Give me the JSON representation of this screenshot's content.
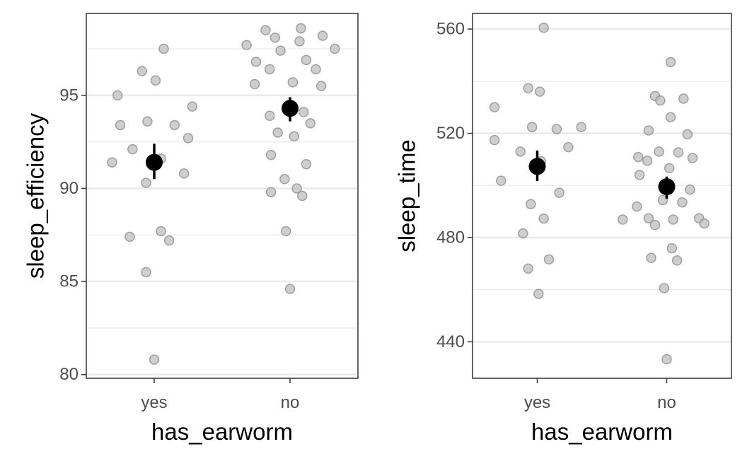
{
  "chart_data": [
    {
      "type": "scatter",
      "xlabel": "has_earworm",
      "ylabel": "sleep_efficiency",
      "categories": [
        "yes",
        "no"
      ],
      "ylim": [
        79.8,
        99.4
      ],
      "yticks": [
        80,
        85,
        90,
        95
      ],
      "grid": true,
      "colors": {
        "points": "#bdbdbd",
        "mean": "#000000"
      },
      "points": [
        {
          "x": "yes",
          "jitter": -0.31,
          "y": 91.4
        },
        {
          "x": "yes",
          "jitter": -0.27,
          "y": 95.0
        },
        {
          "x": "yes",
          "jitter": -0.25,
          "y": 93.4
        },
        {
          "x": "yes",
          "jitter": -0.16,
          "y": 92.1
        },
        {
          "x": "yes",
          "jitter": -0.09,
          "y": 96.3
        },
        {
          "x": "yes",
          "jitter": 0.01,
          "y": 95.8
        },
        {
          "x": "yes",
          "jitter": 0.07,
          "y": 97.5
        },
        {
          "x": "yes",
          "jitter": -0.05,
          "y": 93.6
        },
        {
          "x": "yes",
          "jitter": 0.15,
          "y": 93.4
        },
        {
          "x": "yes",
          "jitter": 0.25,
          "y": 92.7
        },
        {
          "x": "yes",
          "jitter": 0.28,
          "y": 94.4
        },
        {
          "x": "yes",
          "jitter": 0.22,
          "y": 90.8
        },
        {
          "x": "yes",
          "jitter": 0.05,
          "y": 91.6
        },
        {
          "x": "yes",
          "jitter": -0.06,
          "y": 90.3
        },
        {
          "x": "yes",
          "jitter": -0.18,
          "y": 87.4
        },
        {
          "x": "yes",
          "jitter": 0.05,
          "y": 87.7
        },
        {
          "x": "yes",
          "jitter": 0.11,
          "y": 87.2
        },
        {
          "x": "yes",
          "jitter": -0.06,
          "y": 85.5
        },
        {
          "x": "yes",
          "jitter": 0.0,
          "y": 80.8
        },
        {
          "x": "no",
          "jitter": -0.32,
          "y": 97.7
        },
        {
          "x": "no",
          "jitter": -0.18,
          "y": 98.5
        },
        {
          "x": "no",
          "jitter": -0.11,
          "y": 98.1
        },
        {
          "x": "no",
          "jitter": -0.25,
          "y": 96.8
        },
        {
          "x": "no",
          "jitter": -0.15,
          "y": 96.4
        },
        {
          "x": "no",
          "jitter": -0.07,
          "y": 97.4
        },
        {
          "x": "no",
          "jitter": -0.26,
          "y": 95.6
        },
        {
          "x": "no",
          "jitter": 0.08,
          "y": 98.6
        },
        {
          "x": "no",
          "jitter": 0.24,
          "y": 98.2
        },
        {
          "x": "no",
          "jitter": 0.33,
          "y": 97.5
        },
        {
          "x": "no",
          "jitter": 0.07,
          "y": 97.9
        },
        {
          "x": "no",
          "jitter": 0.12,
          "y": 96.9
        },
        {
          "x": "no",
          "jitter": 0.19,
          "y": 96.4
        },
        {
          "x": "no",
          "jitter": 0.02,
          "y": 95.7
        },
        {
          "x": "no",
          "jitter": 0.23,
          "y": 95.5
        },
        {
          "x": "no",
          "jitter": -0.15,
          "y": 93.9
        },
        {
          "x": "no",
          "jitter": 0.1,
          "y": 94.1
        },
        {
          "x": "no",
          "jitter": 0.15,
          "y": 93.5
        },
        {
          "x": "no",
          "jitter": -0.09,
          "y": 93.0
        },
        {
          "x": "no",
          "jitter": 0.03,
          "y": 92.8
        },
        {
          "x": "no",
          "jitter": -0.14,
          "y": 91.8
        },
        {
          "x": "no",
          "jitter": 0.12,
          "y": 91.3
        },
        {
          "x": "no",
          "jitter": -0.04,
          "y": 90.5
        },
        {
          "x": "no",
          "jitter": 0.05,
          "y": 90.0
        },
        {
          "x": "no",
          "jitter": -0.14,
          "y": 89.8
        },
        {
          "x": "no",
          "jitter": 0.09,
          "y": 89.6
        },
        {
          "x": "no",
          "jitter": -0.03,
          "y": 87.7
        },
        {
          "x": "no",
          "jitter": 0.0,
          "y": 84.6
        }
      ],
      "summary": [
        {
          "x": "yes",
          "mean": 91.4,
          "lower": 90.5,
          "upper": 92.4
        },
        {
          "x": "no",
          "mean": 94.3,
          "lower": 93.6,
          "upper": 94.9
        }
      ]
    },
    {
      "type": "scatter",
      "xlabel": "has_earworm",
      "ylabel": "sleep_time",
      "categories": [
        "yes",
        "no"
      ],
      "ylim": [
        426,
        566
      ],
      "yticks": [
        440,
        480,
        520,
        560
      ],
      "grid": true,
      "colors": {
        "points": "#bdbdbd",
        "mean": "#000000"
      },
      "points": [
        {
          "x": "yes",
          "jitter": 0.05,
          "y": 560.5
        },
        {
          "x": "yes",
          "jitter": -0.07,
          "y": 537.3
        },
        {
          "x": "yes",
          "jitter": 0.02,
          "y": 536.0
        },
        {
          "x": "yes",
          "jitter": -0.33,
          "y": 530.0
        },
        {
          "x": "yes",
          "jitter": -0.04,
          "y": 522.4
        },
        {
          "x": "yes",
          "jitter": 0.34,
          "y": 522.4
        },
        {
          "x": "yes",
          "jitter": 0.15,
          "y": 521.6
        },
        {
          "x": "yes",
          "jitter": -0.33,
          "y": 517.4
        },
        {
          "x": "yes",
          "jitter": 0.24,
          "y": 514.7
        },
        {
          "x": "yes",
          "jitter": -0.13,
          "y": 513.0
        },
        {
          "x": "yes",
          "jitter": 0.03,
          "y": 509.3
        },
        {
          "x": "yes",
          "jitter": -0.28,
          "y": 501.8
        },
        {
          "x": "yes",
          "jitter": 0.17,
          "y": 497.2
        },
        {
          "x": "yes",
          "jitter": -0.05,
          "y": 492.8
        },
        {
          "x": "yes",
          "jitter": 0.05,
          "y": 487.3
        },
        {
          "x": "yes",
          "jitter": -0.11,
          "y": 481.6
        },
        {
          "x": "yes",
          "jitter": -0.07,
          "y": 468.1
        },
        {
          "x": "yes",
          "jitter": 0.09,
          "y": 471.6
        },
        {
          "x": "yes",
          "jitter": 0.01,
          "y": 458.4
        },
        {
          "x": "no",
          "jitter": 0.03,
          "y": 547.3
        },
        {
          "x": "no",
          "jitter": -0.09,
          "y": 534.3
        },
        {
          "x": "no",
          "jitter": -0.05,
          "y": 532.6
        },
        {
          "x": "no",
          "jitter": 0.13,
          "y": 533.3
        },
        {
          "x": "no",
          "jitter": 0.03,
          "y": 526.2
        },
        {
          "x": "no",
          "jitter": -0.14,
          "y": 521.1
        },
        {
          "x": "no",
          "jitter": 0.16,
          "y": 519.6
        },
        {
          "x": "no",
          "jitter": -0.22,
          "y": 510.9
        },
        {
          "x": "no",
          "jitter": -0.15,
          "y": 509.5
        },
        {
          "x": "no",
          "jitter": -0.06,
          "y": 513.0
        },
        {
          "x": "no",
          "jitter": 0.09,
          "y": 512.7
        },
        {
          "x": "no",
          "jitter": 0.2,
          "y": 510.5
        },
        {
          "x": "no",
          "jitter": 0.02,
          "y": 506.6
        },
        {
          "x": "no",
          "jitter": -0.21,
          "y": 504.0
        },
        {
          "x": "no",
          "jitter": 0.18,
          "y": 498.4
        },
        {
          "x": "no",
          "jitter": -0.23,
          "y": 491.9
        },
        {
          "x": "no",
          "jitter": -0.03,
          "y": 494.4
        },
        {
          "x": "no",
          "jitter": 0.12,
          "y": 493.5
        },
        {
          "x": "no",
          "jitter": -0.34,
          "y": 486.9
        },
        {
          "x": "no",
          "jitter": -0.14,
          "y": 487.4
        },
        {
          "x": "no",
          "jitter": -0.09,
          "y": 484.8
        },
        {
          "x": "no",
          "jitter": 0.05,
          "y": 486.9
        },
        {
          "x": "no",
          "jitter": 0.25,
          "y": 487.4
        },
        {
          "x": "no",
          "jitter": 0.29,
          "y": 485.4
        },
        {
          "x": "no",
          "jitter": 0.04,
          "y": 475.9
        },
        {
          "x": "no",
          "jitter": -0.12,
          "y": 472.2
        },
        {
          "x": "no",
          "jitter": 0.08,
          "y": 471.2
        },
        {
          "x": "no",
          "jitter": -0.02,
          "y": 460.6
        },
        {
          "x": "no",
          "jitter": 0.0,
          "y": 433.3
        }
      ],
      "summary": [
        {
          "x": "yes",
          "mean": 507.3,
          "lower": 501.7,
          "upper": 513.4
        },
        {
          "x": "no",
          "mean": 499.5,
          "lower": 494.9,
          "upper": 503.4
        }
      ]
    }
  ]
}
